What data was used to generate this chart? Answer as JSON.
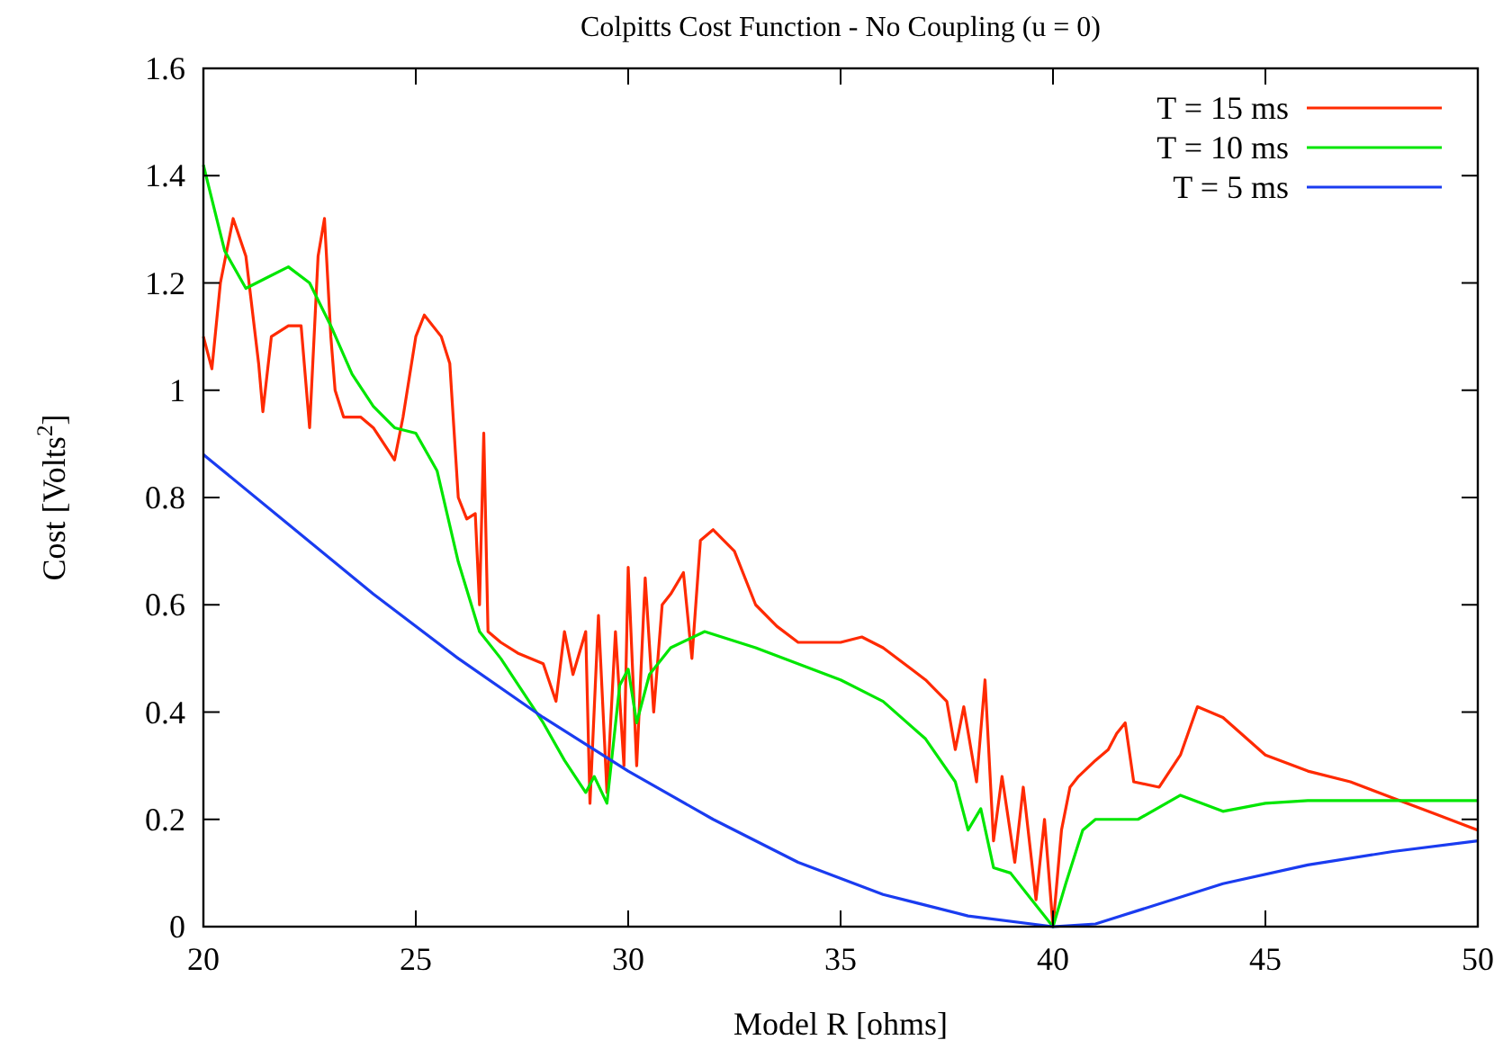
{
  "chart_data": {
    "type": "line",
    "title": "Colpitts Cost Function - No Coupling (u = 0)",
    "xlabel": "Model R [ohms]",
    "ylabel": "Cost  [Volts$^{2}$]",
    "xlim": [
      20,
      50
    ],
    "ylim": [
      0,
      1.6
    ],
    "xticks": [
      20,
      25,
      30,
      35,
      40,
      45,
      50
    ],
    "yticks": [
      0,
      0.2,
      0.4,
      0.6,
      0.8,
      1,
      1.2,
      1.4,
      1.6
    ],
    "grid": false,
    "legend": "top right",
    "marker": "none",
    "line_style": "solid",
    "series": [
      {
        "name": "T = 15 ms",
        "color": "#ff2a00",
        "x": [
          20,
          20.2,
          20.4,
          20.7,
          21,
          21.3,
          21.4,
          21.6,
          22,
          22.3,
          22.5,
          22.7,
          22.85,
          23,
          23.1,
          23.3,
          23.7,
          24,
          24.5,
          24.7,
          25,
          25.2,
          25.6,
          25.8,
          26,
          26.2,
          26.4,
          26.5,
          26.6,
          26.7,
          27,
          27.4,
          28,
          28.3,
          28.5,
          28.7,
          29,
          29.1,
          29.3,
          29.5,
          29.7,
          29.9,
          30,
          30.2,
          30.4,
          30.6,
          30.8,
          31,
          31.3,
          31.5,
          31.7,
          32,
          32.5,
          33,
          33.5,
          34,
          35,
          35.5,
          36,
          37,
          37.5,
          37.7,
          37.9,
          38.2,
          38.4,
          38.6,
          38.8,
          39.1,
          39.3,
          39.6,
          39.8,
          40,
          40.2,
          40.4,
          40.6,
          41,
          41.3,
          41.5,
          41.7,
          41.9,
          42.5,
          43,
          43.4,
          44,
          45,
          46,
          47,
          48,
          49,
          50
        ],
        "values": [
          1.1,
          1.04,
          1.2,
          1.32,
          1.25,
          1.05,
          0.96,
          1.1,
          1.12,
          1.12,
          0.93,
          1.25,
          1.32,
          1.1,
          1.0,
          0.95,
          0.95,
          0.93,
          0.87,
          0.95,
          1.1,
          1.14,
          1.1,
          1.05,
          0.8,
          0.76,
          0.77,
          0.6,
          0.92,
          0.55,
          0.53,
          0.51,
          0.49,
          0.42,
          0.55,
          0.47,
          0.55,
          0.23,
          0.58,
          0.25,
          0.55,
          0.3,
          0.67,
          0.3,
          0.65,
          0.4,
          0.6,
          0.62,
          0.66,
          0.5,
          0.72,
          0.74,
          0.7,
          0.6,
          0.56,
          0.53,
          0.53,
          0.54,
          0.52,
          0.46,
          0.42,
          0.33,
          0.41,
          0.27,
          0.46,
          0.16,
          0.28,
          0.12,
          0.26,
          0.05,
          0.2,
          0.0,
          0.18,
          0.26,
          0.28,
          0.31,
          0.33,
          0.36,
          0.38,
          0.27,
          0.26,
          0.32,
          0.41,
          0.39,
          0.32,
          0.29,
          0.27,
          0.24,
          0.21,
          0.18
        ]
      },
      {
        "name": "T = 10 ms",
        "color": "#00e600",
        "x": [
          20,
          20.5,
          21,
          21.5,
          22,
          22.5,
          23,
          23.5,
          24,
          24.5,
          25,
          25.5,
          26,
          26.5,
          27,
          27.5,
          28,
          28.5,
          29,
          29.2,
          29.5,
          29.8,
          30,
          30.2,
          30.5,
          31,
          31.8,
          33,
          35,
          36,
          37,
          37.7,
          38,
          38.3,
          38.6,
          39,
          39.5,
          40,
          40.3,
          40.7,
          41,
          42,
          43,
          44,
          45,
          46,
          50
        ],
        "values": [
          1.42,
          1.26,
          1.19,
          1.21,
          1.23,
          1.2,
          1.12,
          1.03,
          0.97,
          0.93,
          0.92,
          0.85,
          0.68,
          0.55,
          0.5,
          0.44,
          0.38,
          0.31,
          0.25,
          0.28,
          0.23,
          0.45,
          0.48,
          0.38,
          0.47,
          0.52,
          0.55,
          0.52,
          0.46,
          0.42,
          0.35,
          0.27,
          0.18,
          0.22,
          0.11,
          0.1,
          0.05,
          0.0,
          0.08,
          0.18,
          0.2,
          0.2,
          0.245,
          0.215,
          0.23,
          0.235,
          0.235
        ]
      },
      {
        "name": "T = 5 ms",
        "color": "#1a3cf0",
        "x": [
          20,
          22,
          24,
          26,
          28,
          30,
          32,
          34,
          36,
          38,
          40,
          41,
          42,
          44,
          46,
          48,
          50
        ],
        "values": [
          0.88,
          0.75,
          0.62,
          0.5,
          0.39,
          0.29,
          0.2,
          0.12,
          0.06,
          0.02,
          0.0,
          0.005,
          0.03,
          0.08,
          0.115,
          0.14,
          0.16
        ]
      }
    ]
  }
}
